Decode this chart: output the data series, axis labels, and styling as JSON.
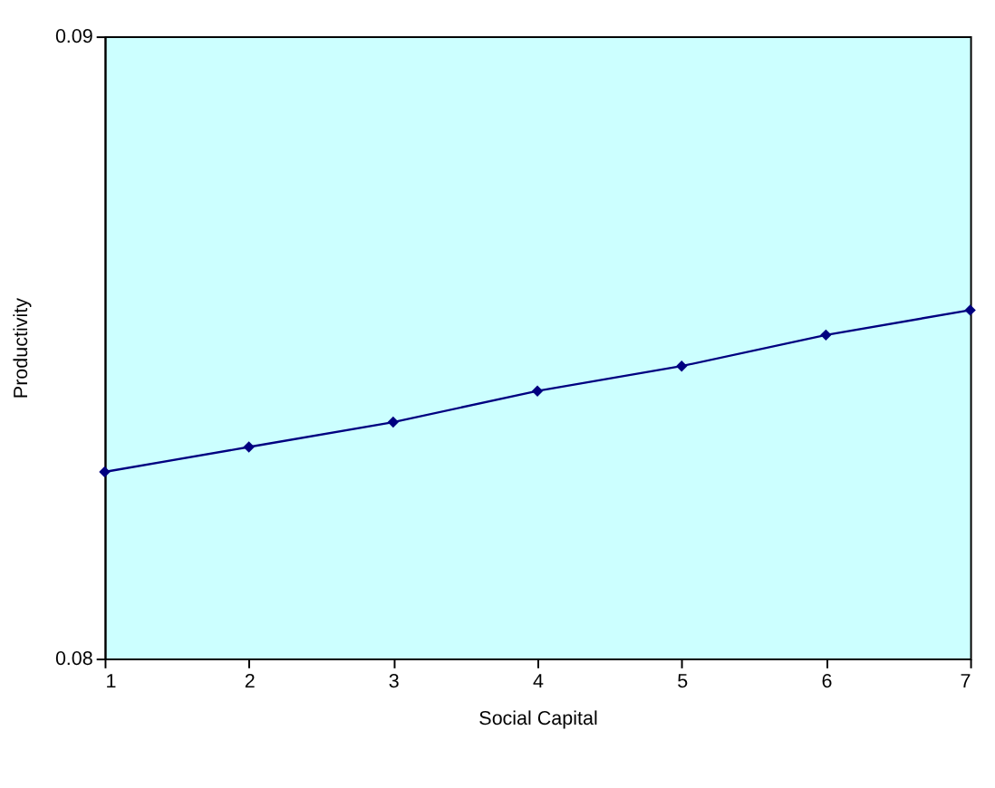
{
  "chart_data": {
    "type": "line",
    "xlabel": "Social Capital",
    "ylabel": "Productivity",
    "x": [
      1,
      2,
      3,
      4,
      5,
      6,
      7
    ],
    "series": [
      {
        "color": "#000080",
        "values": [
          0.083,
          0.0834,
          0.0838,
          0.0843,
          0.0847,
          0.0852,
          0.0856
        ]
      }
    ],
    "xlim": [
      1,
      7
    ],
    "xticks": [
      1,
      2,
      3,
      4,
      5,
      6,
      7
    ],
    "ylim": [
      0.08,
      0.09
    ],
    "yticks": [
      0.08,
      0.09
    ],
    "grid": false,
    "marker": "diamond",
    "line_style": "solid"
  }
}
